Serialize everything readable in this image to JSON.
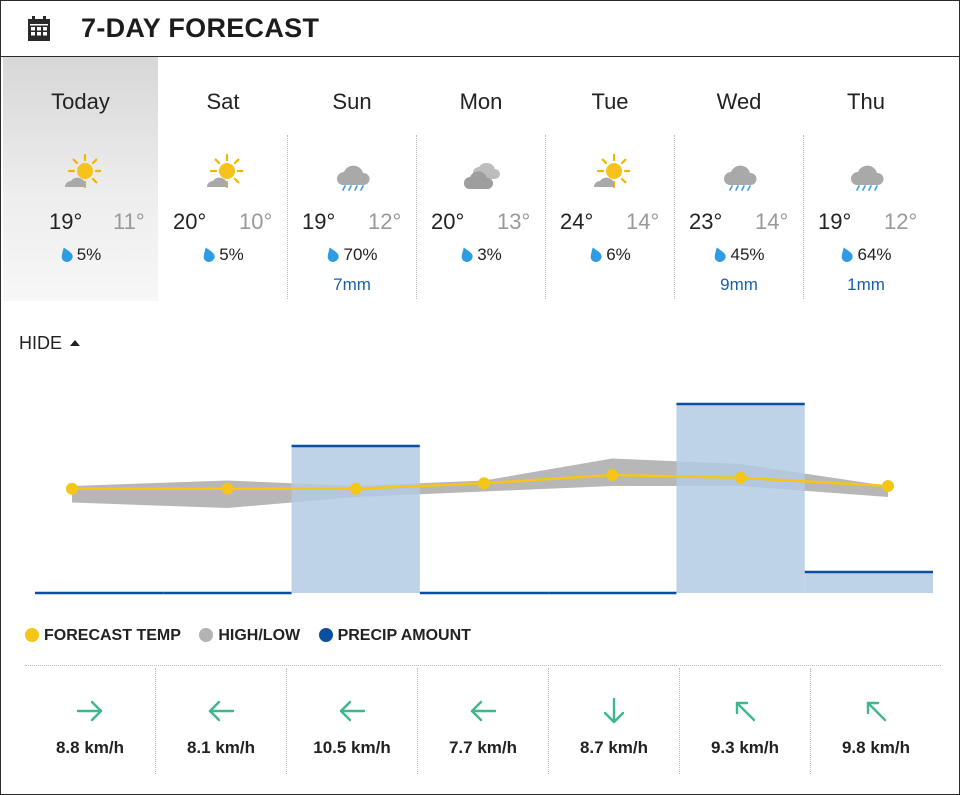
{
  "header": {
    "title": "7-DAY FORECAST",
    "icon": "calendar-icon"
  },
  "days": [
    {
      "name": "Today",
      "icon": "partly-sunny-icon",
      "hi": "19°",
      "lo": "11°",
      "pop": "5%",
      "mm": ""
    },
    {
      "name": "Sat",
      "icon": "partly-sunny-icon",
      "hi": "20°",
      "lo": "10°",
      "pop": "5%",
      "mm": ""
    },
    {
      "name": "Sun",
      "icon": "rain-icon",
      "hi": "19°",
      "lo": "12°",
      "pop": "70%",
      "mm": "7mm"
    },
    {
      "name": "Mon",
      "icon": "cloudy-icon",
      "hi": "20°",
      "lo": "13°",
      "pop": "3%",
      "mm": ""
    },
    {
      "name": "Tue",
      "icon": "partly-sunny-icon",
      "hi": "24°",
      "lo": "14°",
      "pop": "6%",
      "mm": ""
    },
    {
      "name": "Wed",
      "icon": "rain-icon",
      "hi": "23°",
      "lo": "14°",
      "pop": "45%",
      "mm": "9mm"
    },
    {
      "name": "Thu",
      "icon": "rain-icon",
      "hi": "19°",
      "lo": "12°",
      "pop": "64%",
      "mm": "1mm"
    }
  ],
  "toggle": {
    "label": "HIDE"
  },
  "legend": {
    "forecast": "FORECAST TEMP",
    "highlow": "HIGH/LOW",
    "precip": "PRECIP AMOUNT"
  },
  "colors": {
    "forecast": "#f5c518",
    "highlow": "#b3b3b3",
    "precip": "#0b4ea2",
    "precip_fill": "#b3cbe3",
    "mm_text": "#1a5fa8"
  },
  "chart_data": {
    "type": "line",
    "categories": [
      "Today",
      "Sat",
      "Sun",
      "Mon",
      "Tue",
      "Wed",
      "Thu"
    ],
    "series": [
      {
        "name": "FORECAST TEMP",
        "values": [
          16.5,
          16.5,
          16.5,
          17.5,
          19,
          18.5,
          17
        ]
      },
      {
        "name": "HIGH/LOW",
        "high": [
          19,
          20,
          19,
          20,
          24,
          23,
          19
        ],
        "low": [
          11,
          10,
          12,
          13,
          14,
          14,
          12
        ]
      },
      {
        "name": "PRECIP AMOUNT",
        "values": [
          0,
          0,
          7,
          0,
          0,
          9,
          1
        ]
      }
    ]
  },
  "wind": [
    {
      "speed": "8.8 km/h",
      "dir": "east",
      "icon": "arrow-right-icon"
    },
    {
      "speed": "8.1 km/h",
      "dir": "west",
      "icon": "arrow-left-icon"
    },
    {
      "speed": "10.5 km/h",
      "dir": "west",
      "icon": "arrow-left-icon"
    },
    {
      "speed": "7.7 km/h",
      "dir": "west",
      "icon": "arrow-left-icon"
    },
    {
      "speed": "8.7 km/h",
      "dir": "south",
      "icon": "arrow-down-icon"
    },
    {
      "speed": "9.3 km/h",
      "dir": "north-west",
      "icon": "arrow-up-left-icon"
    },
    {
      "speed": "9.8 km/h",
      "dir": "north-west",
      "icon": "arrow-up-left-icon"
    }
  ]
}
